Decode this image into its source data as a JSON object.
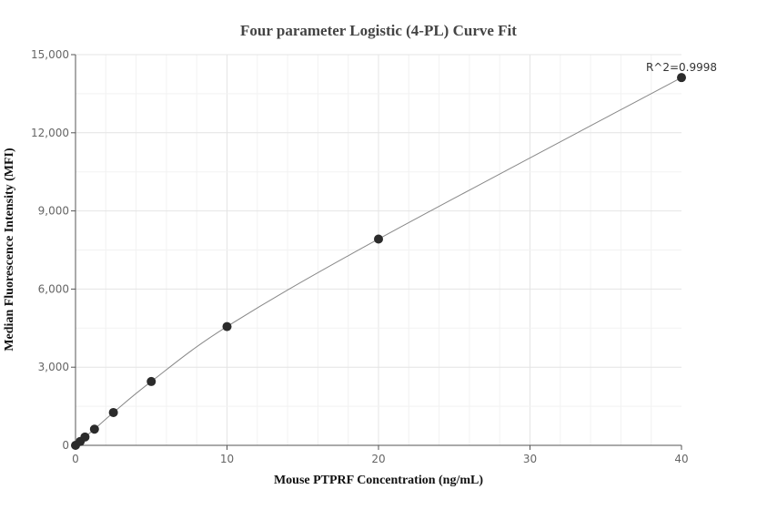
{
  "chart_data": {
    "type": "scatter",
    "title": "Four parameter Logistic (4-PL) Curve Fit",
    "xlabel": "Mouse PTPRF Concentration (ng/mL)",
    "ylabel": "Median Fluorescence Intensity (MFI)",
    "xlim": [
      0,
      40
    ],
    "ylim": [
      0,
      15000
    ],
    "xticks": [
      "0",
      "10",
      "20",
      "30",
      "40"
    ],
    "yticks": [
      "0",
      "3,000",
      "6,000",
      "9,000",
      "12,000",
      "15,000"
    ],
    "grid": true,
    "points": {
      "x": [
        0,
        0.3125,
        0.625,
        1.25,
        2.5,
        5,
        10,
        20,
        40
      ],
      "y": [
        0,
        150,
        320,
        620,
        1260,
        2450,
        4560,
        7920,
        14120
      ]
    },
    "fit_curve": true,
    "annotation": "R^2=0.9998",
    "colors": {
      "points": "#2b2b2b",
      "curve": "#888888"
    }
  }
}
